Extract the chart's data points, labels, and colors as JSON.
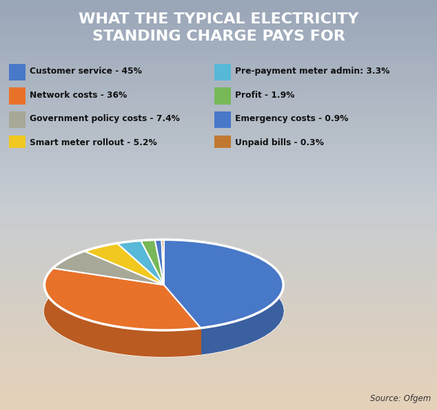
{
  "title": "WHAT THE TYPICAL ELECTRICITY\nSTANDING CHARGE PAYS FOR",
  "title_bg_color": "#2860b8",
  "title_text_color": "#ffffff",
  "slices": [
    {
      "label": "Customer service - 45%",
      "value": 45.0,
      "color": "#4878c8"
    },
    {
      "label": "Network costs - 36%",
      "value": 36.0,
      "color": "#e8722a"
    },
    {
      "label": "Government policy costs - 7.4%",
      "value": 7.4,
      "color": "#a8a898"
    },
    {
      "label": "Smart meter rollout - 5.2%",
      "value": 5.2,
      "color": "#f0c820"
    },
    {
      "label": "Pre-payment meter admin: 3.3%",
      "value": 3.3,
      "color": "#58b8d8"
    },
    {
      "label": "Profit - 1.9%",
      "value": 1.9,
      "color": "#78b858"
    },
    {
      "label": "Emergency costs - 0.9%",
      "value": 0.9,
      "color": "#4878c8"
    },
    {
      "label": "Unpaid bills - 0.3%",
      "value": 0.3,
      "color": "#c07830"
    }
  ],
  "legend_left": [
    {
      "label": "Customer service - 45%",
      "color": "#4878c8"
    },
    {
      "label": "Network costs - 36%",
      "color": "#e8722a"
    },
    {
      "label": "Government policy costs - 7.4%",
      "color": "#a8a898"
    },
    {
      "label": "Smart meter rollout - 5.2%",
      "color": "#f0c820"
    }
  ],
  "legend_right": [
    {
      "label": "Pre-payment meter admin: 3.3%",
      "color": "#58b8d8"
    },
    {
      "label": "Profit - 1.9%",
      "color": "#78b858"
    },
    {
      "label": "Emergency costs - 0.9%",
      "color": "#4878c8"
    },
    {
      "label": "Unpaid bills - 0.3%",
      "color": "#c07830"
    }
  ],
  "source_text": "Source: Ofgem",
  "pie_edge_color": "#ffffff",
  "depth_color": "#a0a888",
  "depth_dark_color": "#787868",
  "shadow_color": "#888878"
}
